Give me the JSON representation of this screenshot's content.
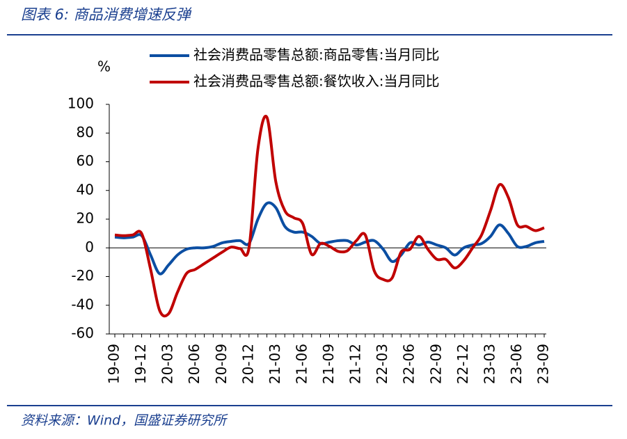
{
  "chart_data": {
    "type": "line",
    "title": "图表 6:  商品消费增速反弹",
    "source": "资料来源：Wind，国盛证券研究所",
    "y_label": "%",
    "categories": [
      "19-09",
      null,
      null,
      "19-12",
      null,
      null,
      "20-03",
      null,
      null,
      "20-06",
      null,
      null,
      "20-09",
      null,
      null,
      "20-12",
      null,
      null,
      "21-03",
      null,
      null,
      "21-06",
      null,
      null,
      "21-09",
      null,
      null,
      "21-12",
      null,
      null,
      "22-03",
      null,
      null,
      "22-06",
      null,
      null,
      "22-09",
      null,
      null,
      "22-12",
      null,
      null,
      "23-03",
      null,
      null,
      "23-06",
      null,
      null,
      "23-09"
    ],
    "series": [
      {
        "name": "社会消费品零售总额:商品零售:当月同比",
        "color": "#0b4ea2",
        "values": [
          7.5,
          7,
          7.5,
          8.5,
          -5,
          -18,
          -12,
          -5,
          -1,
          0,
          0,
          1,
          3.5,
          4.5,
          5,
          3,
          20,
          31,
          28,
          15,
          11,
          11,
          8,
          3,
          4,
          5,
          5,
          2,
          4,
          5,
          -1,
          -9.5,
          -5,
          3.5,
          2,
          4,
          2,
          0,
          -5,
          0,
          2,
          3,
          8,
          16,
          10,
          1,
          1,
          3.5,
          4.5
        ]
      },
      {
        "name": "社会消费品零售总额:餐饮收入:当月同比",
        "color": "#c00000",
        "values": [
          9,
          8.5,
          9,
          10,
          -15,
          -43.5,
          -46,
          -31,
          -18,
          -15,
          -11,
          -7,
          -3,
          0.5,
          -0.5,
          0,
          69,
          91,
          46,
          26,
          21,
          17,
          -4.5,
          3,
          1,
          -2.5,
          -2,
          5,
          9,
          -16,
          -22,
          -21,
          -3,
          -1,
          8,
          -1,
          -8,
          -8,
          -14,
          -9,
          0,
          9,
          26,
          44,
          35,
          16,
          15,
          12,
          14
        ]
      }
    ],
    "ylim": [
      -60,
      100
    ],
    "yticks": [
      -60,
      -40,
      -20,
      0,
      20,
      40,
      60,
      80,
      100
    ]
  }
}
